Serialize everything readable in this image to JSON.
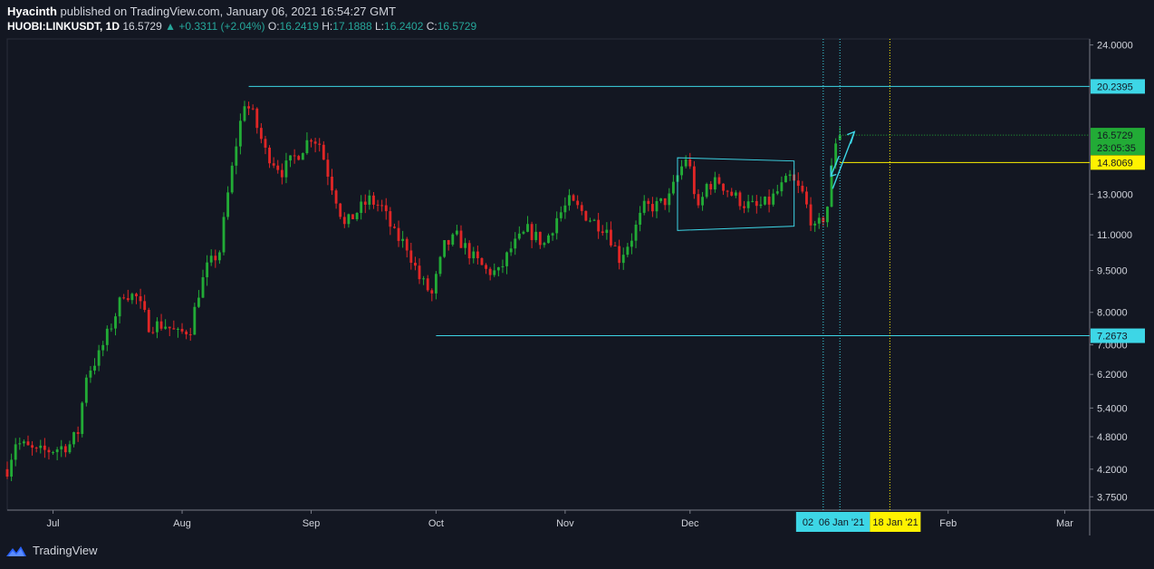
{
  "header": {
    "author": "Hyacinth",
    "published_text": "published on TradingView.com, January 06, 2021 16:54:27 GMT",
    "symbol": "HUOBI:LINKUSDT, 1D",
    "last": "16.5729",
    "change": "+0.3311 (+2.04%)",
    "o_label": "O:",
    "o_value": "16.2419",
    "h_label": "H:",
    "h_value": "17.1888",
    "l_label": "L:",
    "l_value": "16.2402",
    "c_label": "C:",
    "c_value": "16.5729"
  },
  "footer": {
    "brand": "TradingView"
  },
  "colors": {
    "background": "#131722",
    "up": "#26a69a",
    "up_candle": "#22ab36",
    "down_candle": "#e02626",
    "cyan": "#3dd6e6",
    "yellow": "#fff200",
    "grid_text": "#d1d4dc"
  },
  "chart_data": {
    "type": "candlestick",
    "y_scale": "log",
    "ylim": [
      3.55,
      24.6
    ],
    "y_ticks": [
      {
        "value": 24.0,
        "label": "24.0000"
      },
      {
        "value": 13.0,
        "label": "13.0000"
      },
      {
        "value": 11.0,
        "label": "11.0000"
      },
      {
        "value": 9.5,
        "label": "9.5000"
      },
      {
        "value": 8.0,
        "label": "8.0000"
      },
      {
        "value": 7.0,
        "label": "7.0000"
      },
      {
        "value": 6.2,
        "label": "6.2000"
      },
      {
        "value": 5.4,
        "label": "5.4000"
      },
      {
        "value": 4.8,
        "label": "4.8000"
      },
      {
        "value": 4.2,
        "label": "4.2000"
      },
      {
        "value": 3.75,
        "label": "3.7500"
      }
    ],
    "x_start": "2020-06-20",
    "x_end": "2021-03-07",
    "x_ticks": [
      {
        "date": "2020-07-01",
        "label": "Jul"
      },
      {
        "date": "2020-08-01",
        "label": "Aug"
      },
      {
        "date": "2020-09-01",
        "label": "Sep"
      },
      {
        "date": "2020-10-01",
        "label": "Oct"
      },
      {
        "date": "2020-11-01",
        "label": "Nov"
      },
      {
        "date": "2020-12-01",
        "label": "Dec"
      },
      {
        "date": "2021-02-01",
        "label": "Feb"
      },
      {
        "date": "2021-03-01",
        "label": "Mar"
      }
    ],
    "anchor_points": [
      [
        "2020-06-20",
        4.2
      ],
      [
        "2020-06-22",
        4.7
      ],
      [
        "2020-06-27",
        4.5
      ],
      [
        "2020-07-01",
        4.55
      ],
      [
        "2020-07-05",
        4.65
      ],
      [
        "2020-07-07",
        4.9
      ],
      [
        "2020-07-09",
        6.2
      ],
      [
        "2020-07-12",
        6.7
      ],
      [
        "2020-07-15",
        7.6
      ],
      [
        "2020-07-18",
        8.7
      ],
      [
        "2020-07-21",
        8.5
      ],
      [
        "2020-07-24",
        7.6
      ],
      [
        "2020-07-28",
        7.6
      ],
      [
        "2020-07-31",
        7.3
      ],
      [
        "2020-08-03",
        7.5
      ],
      [
        "2020-08-05",
        8.7
      ],
      [
        "2020-08-07",
        9.6
      ],
      [
        "2020-08-10",
        10.3
      ],
      [
        "2020-08-12",
        13.0
      ],
      [
        "2020-08-14",
        16.0
      ],
      [
        "2020-08-16",
        19.0
      ],
      [
        "2020-08-18",
        18.0
      ],
      [
        "2020-08-21",
        15.5
      ],
      [
        "2020-08-25",
        14.3
      ],
      [
        "2020-08-29",
        15.4
      ],
      [
        "2020-09-01",
        16.5
      ],
      [
        "2020-09-03",
        16.0
      ],
      [
        "2020-09-05",
        14.2
      ],
      [
        "2020-09-07",
        12.8
      ],
      [
        "2020-09-09",
        11.4
      ],
      [
        "2020-09-12",
        12.1
      ],
      [
        "2020-09-15",
        12.7
      ],
      [
        "2020-09-18",
        12.3
      ],
      [
        "2020-09-21",
        11.0
      ],
      [
        "2020-09-24",
        10.5
      ],
      [
        "2020-09-27",
        9.2
      ],
      [
        "2020-09-30",
        8.6
      ],
      [
        "2020-10-03",
        10.5
      ],
      [
        "2020-10-06",
        10.9
      ],
      [
        "2020-10-10",
        10.0
      ],
      [
        "2020-10-13",
        9.5
      ],
      [
        "2020-10-16",
        9.4
      ],
      [
        "2020-10-19",
        10.4
      ],
      [
        "2020-10-23",
        11.2
      ],
      [
        "2020-10-27",
        10.6
      ],
      [
        "2020-10-30",
        11.8
      ],
      [
        "2020-11-02",
        12.6
      ],
      [
        "2020-11-05",
        12.1
      ],
      [
        "2020-11-08",
        11.6
      ],
      [
        "2020-11-11",
        11.3
      ],
      [
        "2020-11-14",
        10.0
      ],
      [
        "2020-11-17",
        10.9
      ],
      [
        "2020-11-20",
        12.3
      ],
      [
        "2020-11-23",
        12.4
      ],
      [
        "2020-11-26",
        12.8
      ],
      [
        "2020-11-28",
        14.0
      ],
      [
        "2020-11-30",
        15.1
      ],
      [
        "2020-12-01",
        14.4
      ],
      [
        "2020-12-03",
        12.1
      ],
      [
        "2020-12-05",
        13.5
      ],
      [
        "2020-12-08",
        13.7
      ],
      [
        "2020-12-11",
        13.0
      ],
      [
        "2020-12-14",
        12.5
      ],
      [
        "2020-12-17",
        12.3
      ],
      [
        "2020-12-20",
        12.6
      ],
      [
        "2020-12-23",
        13.4
      ],
      [
        "2020-12-25",
        13.9
      ],
      [
        "2020-12-28",
        13.0
      ],
      [
        "2020-12-31",
        11.2
      ],
      [
        "2021-01-02",
        11.8
      ],
      [
        "2021-01-03",
        12.4
      ],
      [
        "2021-01-04",
        14.4
      ],
      [
        "2021-01-05",
        16.2
      ],
      [
        "2021-01-06",
        16.57
      ]
    ],
    "last_candle": {
      "date": "2021-01-06",
      "open": 16.2419,
      "high": 17.1888,
      "low": 16.2402,
      "close": 16.5729
    },
    "horizontal_levels": [
      {
        "label": "20.2395",
        "value": 20.2395,
        "from": "2020-08-17",
        "color": "cyan"
      },
      {
        "label": "14.8069",
        "value": 14.8069,
        "from": "2021-01-06",
        "color": "yellow"
      },
      {
        "label": "7.2673",
        "value": 7.2673,
        "from": "2020-10-01",
        "color": "cyan"
      }
    ],
    "current_price_label": "16.5729",
    "countdown_label": "23:05:35",
    "range_box": {
      "x1": "2020-11-28",
      "x2": "2020-12-26",
      "top": [
        15.1,
        14.9
      ],
      "bottom": [
        11.2,
        11.4
      ]
    },
    "vertical_markers": [
      {
        "date": "2021-01-02",
        "color": "cyan"
      },
      {
        "date": "2021-01-06",
        "color": "cyan"
      },
      {
        "date": "2021-01-18",
        "color": "yellow"
      }
    ],
    "date_labels": [
      {
        "text": "02",
        "color": "cyan"
      },
      {
        "text": "06 Jan '21",
        "color": "cyan"
      },
      {
        "text": "18 Jan '21",
        "color": "yellow"
      }
    ]
  }
}
